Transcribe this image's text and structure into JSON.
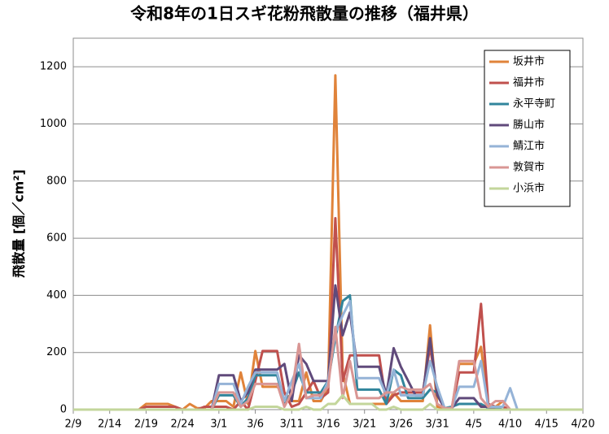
{
  "chart_data": {
    "type": "line",
    "title": "令和8年の1日スギ花粉飛散量の推移（福井県）",
    "y_label": "飛散量 [個／cm²]",
    "categories": [
      "2/9",
      null,
      null,
      null,
      null,
      "2/14",
      null,
      null,
      null,
      null,
      "2/19",
      null,
      null,
      null,
      null,
      "2/24",
      null,
      null,
      null,
      null,
      "3/1",
      null,
      null,
      null,
      null,
      "3/6",
      null,
      null,
      null,
      null,
      "3/11",
      null,
      null,
      null,
      null,
      "3/16",
      null,
      null,
      null,
      null,
      "3/21",
      null,
      null,
      null,
      null,
      "3/26",
      null,
      null,
      null,
      null,
      "3/31",
      null,
      null,
      null,
      null,
      "4/5",
      null,
      null,
      null,
      null,
      "4/10",
      null,
      null,
      null,
      null,
      "4/15",
      null,
      null,
      null,
      null,
      "4/20"
    ],
    "series": [
      {
        "name": "坂井市",
        "color": "#e0833a",
        "values": [
          0,
          0,
          0,
          0,
          0,
          0,
          0,
          0,
          0,
          0,
          20,
          20,
          20,
          20,
          10,
          0,
          20,
          5,
          5,
          30,
          30,
          30,
          10,
          130,
          20,
          205,
          80,
          80,
          80,
          60,
          30,
          30,
          130,
          30,
          30,
          80,
          1170,
          130,
          20,
          20,
          20,
          20,
          20,
          20,
          60,
          30,
          30,
          30,
          30,
          295,
          10,
          5,
          5,
          160,
          160,
          160,
          220,
          10,
          10,
          30,
          0,
          0,
          0,
          0,
          0,
          0,
          0,
          0,
          0,
          0,
          0
        ]
      },
      {
        "name": "福井市",
        "color": "#c0504d",
        "values": [
          0,
          0,
          0,
          0,
          0,
          0,
          0,
          0,
          0,
          0,
          10,
          10,
          10,
          10,
          10,
          0,
          0,
          0,
          10,
          10,
          10,
          10,
          0,
          30,
          0,
          100,
          205,
          205,
          205,
          60,
          10,
          20,
          60,
          100,
          40,
          60,
          670,
          100,
          190,
          190,
          190,
          190,
          190,
          20,
          50,
          60,
          60,
          60,
          60,
          220,
          60,
          5,
          5,
          130,
          130,
          130,
          370,
          20,
          10,
          10,
          0,
          0,
          0,
          0,
          0,
          0,
          0,
          0,
          0,
          0,
          0
        ]
      },
      {
        "name": "永平寺町",
        "color": "#31859c",
        "values": [
          0,
          0,
          0,
          0,
          0,
          0,
          0,
          0,
          0,
          0,
          0,
          0,
          0,
          0,
          0,
          0,
          0,
          0,
          0,
          0,
          50,
          50,
          50,
          10,
          40,
          120,
          120,
          120,
          120,
          20,
          60,
          130,
          60,
          60,
          60,
          100,
          250,
          380,
          400,
          70,
          70,
          70,
          70,
          20,
          140,
          120,
          40,
          40,
          40,
          70,
          60,
          5,
          10,
          20,
          20,
          20,
          20,
          5,
          5,
          0,
          0,
          0,
          0,
          0,
          0,
          0,
          0,
          0,
          0,
          0,
          0
        ]
      },
      {
        "name": "勝山市",
        "color": "#604a7b",
        "values": [
          0,
          0,
          0,
          0,
          0,
          0,
          0,
          0,
          0,
          0,
          0,
          0,
          0,
          0,
          0,
          0,
          0,
          0,
          0,
          0,
          120,
          120,
          120,
          30,
          60,
          140,
          140,
          140,
          140,
          160,
          30,
          190,
          160,
          100,
          100,
          100,
          435,
          260,
          340,
          150,
          150,
          150,
          150,
          50,
          215,
          150,
          100,
          50,
          50,
          250,
          50,
          5,
          5,
          40,
          40,
          40,
          10,
          10,
          0,
          0,
          0,
          0,
          0,
          0,
          0,
          0,
          0,
          0,
          0,
          0,
          0
        ]
      },
      {
        "name": "鯖江市",
        "color": "#95b3d7",
        "values": [
          0,
          0,
          0,
          0,
          0,
          0,
          0,
          0,
          0,
          0,
          0,
          0,
          0,
          0,
          0,
          0,
          0,
          0,
          0,
          0,
          90,
          90,
          90,
          20,
          80,
          130,
          130,
          130,
          130,
          30,
          100,
          160,
          40,
          40,
          40,
          100,
          270,
          330,
          380,
          110,
          110,
          110,
          110,
          50,
          140,
          50,
          50,
          50,
          50,
          170,
          80,
          5,
          5,
          80,
          80,
          80,
          170,
          10,
          10,
          10,
          75,
          0,
          0,
          0,
          0,
          0,
          0,
          0,
          0,
          0,
          0
        ]
      },
      {
        "name": "敦賀市",
        "color": "#d99694",
        "values": [
          0,
          0,
          0,
          0,
          0,
          0,
          0,
          0,
          0,
          0,
          0,
          0,
          0,
          0,
          0,
          0,
          0,
          0,
          0,
          0,
          60,
          60,
          60,
          10,
          30,
          90,
          90,
          90,
          90,
          10,
          60,
          230,
          40,
          50,
          50,
          80,
          290,
          40,
          170,
          40,
          40,
          40,
          40,
          60,
          60,
          80,
          70,
          70,
          70,
          90,
          20,
          5,
          5,
          170,
          170,
          170,
          40,
          10,
          30,
          30,
          0,
          0,
          0,
          0,
          0,
          0,
          0,
          0,
          0,
          0,
          0
        ]
      },
      {
        "name": "小浜市",
        "color": "#c3d69b",
        "values": [
          0,
          0,
          0,
          0,
          0,
          0,
          0,
          0,
          0,
          0,
          0,
          0,
          0,
          0,
          0,
          0,
          0,
          0,
          0,
          0,
          0,
          0,
          0,
          0,
          0,
          10,
          10,
          10,
          10,
          0,
          0,
          0,
          10,
          0,
          0,
          20,
          20,
          50,
          20,
          20,
          20,
          20,
          0,
          0,
          10,
          0,
          0,
          0,
          0,
          20,
          0,
          0,
          0,
          0,
          0,
          0,
          0,
          0,
          0,
          0,
          0,
          0,
          0,
          0,
          0,
          0,
          0,
          0,
          0,
          0,
          0
        ]
      }
    ],
    "ylim": [
      0,
      1300
    ],
    "yticks": [
      0,
      200,
      400,
      600,
      800,
      1000,
      1200
    ],
    "grid": true,
    "legend": "upper right"
  }
}
